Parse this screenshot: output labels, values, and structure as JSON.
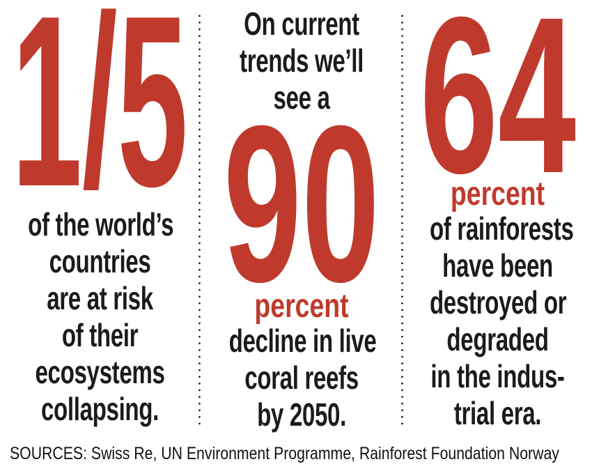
{
  "palette": {
    "accent_red": "#bf3a2c",
    "ink_black": "#1b1b1b",
    "background": "#ffffff"
  },
  "stats": [
    {
      "big_number": "1/5",
      "body_lines": [
        "of the world’s",
        "countries",
        "are at risk",
        "of their",
        "ecosystems",
        "collapsing."
      ]
    },
    {
      "intro_lines": [
        "On current",
        "trends we’ll",
        "see a"
      ],
      "big_number": "90",
      "percent_label": "percent",
      "body_lines": [
        "decline in live",
        "coral reefs",
        "by 2050."
      ]
    },
    {
      "big_number": "64",
      "percent_label": "percent",
      "body_lines": [
        "of rainforests",
        "have been",
        "destroyed or",
        "degraded",
        "in the indus-",
        "trial era."
      ]
    }
  ],
  "sources_line": "SOURCES: Swiss Re, UN Environment Programme, Rainforest Foundation Norway",
  "chart_data": {
    "type": "table",
    "title": "Environmental risk statistics infographic",
    "stats": [
      {
        "value": "1/5",
        "unit": "fraction",
        "label": "of the world’s countries are at risk of their ecosystems collapsing."
      },
      {
        "value": 90,
        "unit": "percent",
        "label": "On current trends we’ll see a 90 percent decline in live coral reefs by 2050."
      },
      {
        "value": 64,
        "unit": "percent",
        "label": "of rainforests have been destroyed or degraded in the industrial era."
      }
    ],
    "sources": [
      "Swiss Re",
      "UN Environment Programme",
      "Rainforest Foundation Norway"
    ],
    "layout": "three columns separated by dotted vertical rules, sources footer bottom-left"
  }
}
